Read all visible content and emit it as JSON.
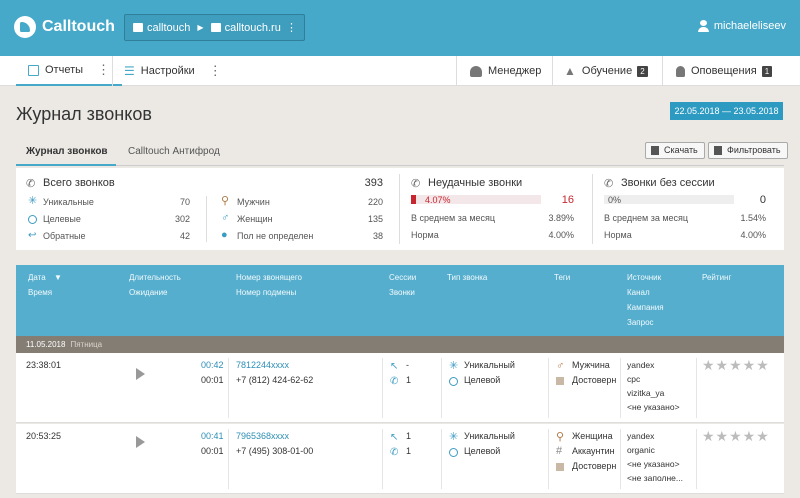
{
  "app": {
    "brand": "Calltouch"
  },
  "project": {
    "account": "calltouch",
    "site": "calltouch.ru"
  },
  "user": {
    "name": "michaeleliseev"
  },
  "nav": {
    "reports": "Отчеты",
    "settings": "Настройки",
    "manager": "Менеджер",
    "training": "Обучение",
    "training_badge": "2",
    "notifications": "Оповещения",
    "notifications_badge": "1"
  },
  "page": {
    "title": "Журнал звонков",
    "date_range": "22.05.2018 — 23.05.2018",
    "tabs": [
      "Журнал звонков",
      "Calltouch Антифрод"
    ],
    "download_label": "Скачать",
    "filter_label": "Фильтровать"
  },
  "stats": {
    "total": {
      "label": "Всего звонков",
      "value": "393",
      "rows": [
        {
          "label": "Уникальные",
          "value": "70"
        },
        {
          "label": "Целевые",
          "value": "302"
        },
        {
          "label": "Обратные",
          "value": "42"
        }
      ]
    },
    "gender": {
      "rows": [
        {
          "label": "Мужчин",
          "value": "220"
        },
        {
          "label": "Женщин",
          "value": "135"
        },
        {
          "label": "Пол не определен",
          "value": "38"
        }
      ]
    },
    "failed": {
      "label": "Неудачные звонки",
      "percent": "4.07%",
      "value": "16",
      "fill_percent": 4.07,
      "avg_label": "В среднем за месяц",
      "avg_value": "3.89%",
      "norm_label": "Норма",
      "norm_value": "4.00%"
    },
    "nosession": {
      "label": "Звонки без сессии",
      "percent": "0%",
      "value": "0",
      "fill_percent": 0,
      "avg_label": "В среднем за месяц",
      "avg_value": "1.54%",
      "norm_label": "Норма",
      "norm_value": "4.00%"
    }
  },
  "table": {
    "headers": {
      "date": "Дата",
      "time": "Время",
      "duration": "Длительность",
      "waiting": "Ожидание",
      "caller": "Номер звонящего",
      "substitution": "Номер подмены",
      "sessions": "Сессии",
      "calls": "Звонки",
      "call_type": "Тип звонка",
      "tags": "Теги",
      "source": "Источник",
      "channel": "Канал",
      "campaign": "Кампания",
      "query": "Запрос",
      "rating": "Рейтинг"
    },
    "day": {
      "date": "11.05.2018",
      "weekday": "Пятница"
    },
    "rows": [
      {
        "time": "23:38:01",
        "duration": "00:42",
        "waiting": "00:01",
        "caller": "7812244xxxx",
        "substitution": "+7 (812) 424-62-62",
        "sessions": "-",
        "calls": "1",
        "type1": "Уникальный",
        "type2": "Целевой",
        "tags": [
          "Мужчина",
          "Достоверн"
        ],
        "source": [
          "yandex",
          "cpc",
          "vizitka_ya",
          "<не указано>"
        ],
        "stars": "★★★★★"
      },
      {
        "time": "20:53:25",
        "duration": "00:41",
        "waiting": "00:01",
        "caller": "7965368xxxx",
        "substitution": "+7 (495) 308-01-00",
        "sessions": "1",
        "calls": "1",
        "type1": "Уникальный",
        "type2": "Целевой",
        "tags": [
          "Женщина",
          "Аккаунтин",
          "Достоверн"
        ],
        "source": [
          "yandex",
          "organic",
          "<не указано>",
          "<не заполне..."
        ],
        "stars": "★★★★★"
      }
    ]
  }
}
